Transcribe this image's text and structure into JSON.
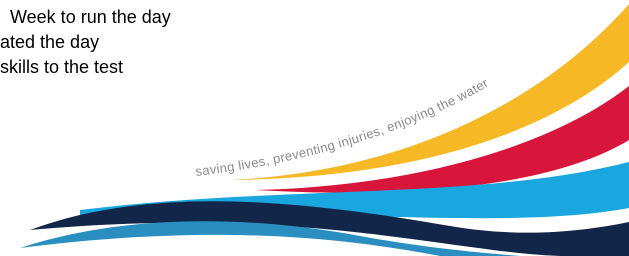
{
  "text_lines": [
    "Week to run the day",
    "ated the day",
    "skills to the test"
  ],
  "tagline": "saving lives, preventing injuries, enjoying the water"
}
